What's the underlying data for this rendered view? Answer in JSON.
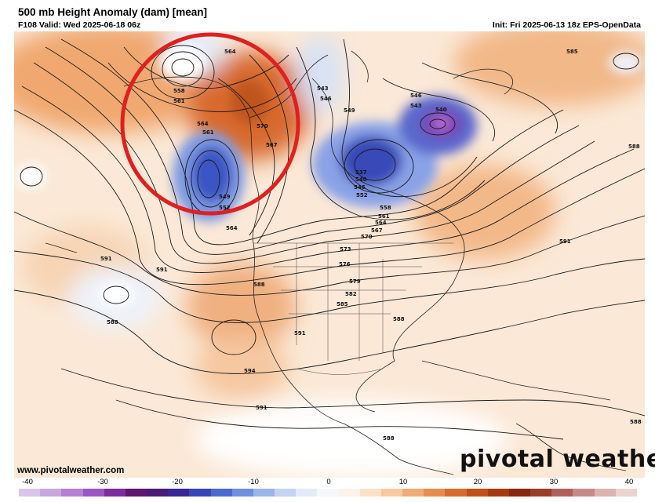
{
  "header": {
    "title": "500 mb Height Anomaly (dam) [mean]",
    "valid": "F108 Valid: Wed 2025-06-18 06z",
    "init": "Init: Fri 2025-06-13 18z EPS-OpenData"
  },
  "footer": {
    "site": "www.pivotalweather.com",
    "logo": "pivotal weather"
  },
  "colorbar": {
    "ticks": [
      "-40",
      "-30",
      "-20",
      "-10",
      "0",
      "10",
      "20",
      "30",
      "40"
    ],
    "colors": [
      "#d9c4ea",
      "#c9a6e0",
      "#b580d4",
      "#9c55c2",
      "#7d2c9e",
      "#5e1670",
      "#4a1a78",
      "#3a2796",
      "#3546b8",
      "#4b6ad0",
      "#6f8fe0",
      "#9bb4ea",
      "#c3d3f2",
      "#e4ebf8",
      "#f6f7fb",
      "#fbf3ea",
      "#fbe1c6",
      "#f7c9a0",
      "#f1ab76",
      "#e78c4f",
      "#d86c2e",
      "#c24f18",
      "#a83a10",
      "#8a270c",
      "#9a3e2a",
      "#b0605a",
      "#c68a86",
      "#dbb3b0",
      "#ead4d2"
    ]
  },
  "contour_labels": [
    "564",
    "558",
    "561",
    "564",
    "561",
    "570",
    "567",
    "549",
    "552",
    "564",
    "543",
    "546",
    "549",
    "540",
    "537",
    "540",
    "546",
    "552",
    "558",
    "561",
    "564",
    "567",
    "570",
    "573",
    "576",
    "579",
    "582",
    "585",
    "588",
    "588",
    "591",
    "591",
    "591",
    "588",
    "591",
    "591",
    "594",
    "588",
    "588",
    "585",
    "588",
    "543",
    "546"
  ],
  "annotation": {
    "shape": "circle",
    "color": "#e02020"
  }
}
